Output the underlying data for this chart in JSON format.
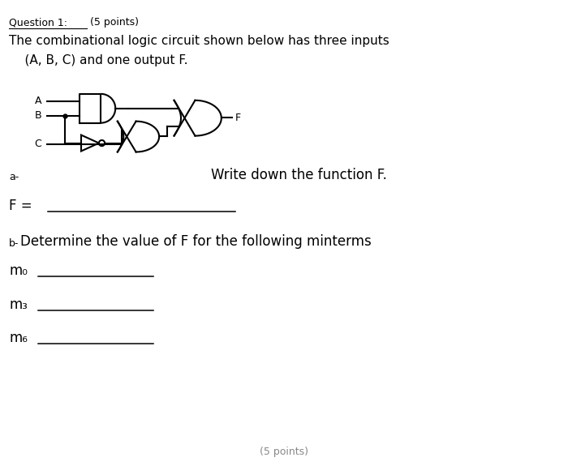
{
  "bg_color": "#ffffff",
  "title_underline": "Question 1:",
  "title_rest": " (5 points)",
  "line1": "The combinational logic circuit shown below has three inputs",
  "line2": "    (A, B, C) and one output F.",
  "label_a": "A",
  "label_b": "B",
  "label_c": "C",
  "label_f": "F",
  "part_a_label": "a-",
  "part_a_text": "Write down the function F.",
  "f_eq": "F =",
  "part_b_label": "b-",
  "part_b_text": "Determine the value of F for the following minterms",
  "m0": "m₀",
  "m3": "m₃",
  "m6": "m₆",
  "footer": "(5 points)"
}
